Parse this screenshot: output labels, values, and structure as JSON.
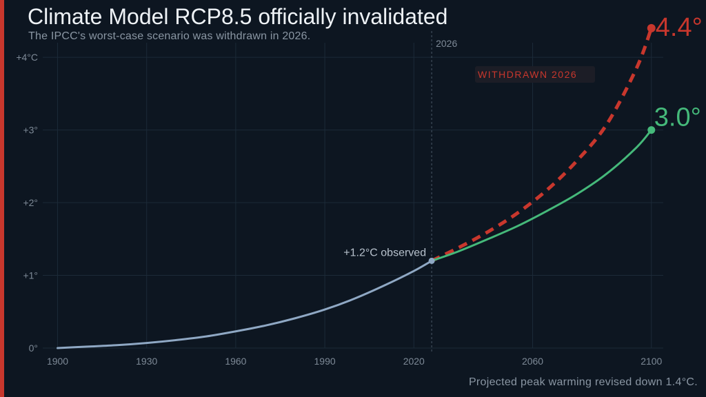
{
  "title": "Climate Model RCP8.5 officially invalidated",
  "subtitle": "The IPCC's worst-case scenario was withdrawn in 2026.",
  "footnote": "Projected peak warming revised down 1.4°C.",
  "colors": {
    "background": "#0d1621",
    "accent": "#c8372d",
    "observed": "#8fa8c4",
    "rcp85": "#c8372d",
    "revised": "#45b97a"
  },
  "chart_data": {
    "type": "line",
    "xlim": [
      1895,
      2104
    ],
    "ylim": [
      0,
      4.2
    ],
    "grid": true,
    "x_ticks": [
      {
        "value": 1900,
        "label": "1900"
      },
      {
        "value": 1930,
        "label": "1930"
      },
      {
        "value": 1960,
        "label": "1960"
      },
      {
        "value": 1990,
        "label": "1990"
      },
      {
        "value": 2020,
        "label": "2020"
      },
      {
        "value": 2060,
        "label": "2060"
      },
      {
        "value": 2100,
        "label": "2100"
      }
    ],
    "y_ticks": [
      {
        "value": 0,
        "label": "0°"
      },
      {
        "value": 1,
        "label": "+1°"
      },
      {
        "value": 2,
        "label": "+2°"
      },
      {
        "value": 3,
        "label": "+3°"
      },
      {
        "value": 4,
        "label": "+4°C"
      }
    ],
    "marker_line": {
      "x": 2026,
      "label": "2026"
    },
    "series": [
      {
        "key": "observed",
        "style": "solid",
        "x": [
          1900,
          1910,
          1920,
          1930,
          1940,
          1950,
          1960,
          1970,
          1980,
          1990,
          2000,
          2010,
          2020,
          2026
        ],
        "y": [
          0.0,
          0.02,
          0.04,
          0.07,
          0.11,
          0.16,
          0.23,
          0.31,
          0.41,
          0.53,
          0.68,
          0.86,
          1.06,
          1.2
        ]
      },
      {
        "key": "rcp85",
        "style": "dashed",
        "x": [
          2026,
          2035,
          2045,
          2055,
          2065,
          2075,
          2085,
          2095,
          2100
        ],
        "y": [
          1.2,
          1.38,
          1.6,
          1.86,
          2.18,
          2.58,
          3.08,
          3.85,
          4.4
        ]
      },
      {
        "key": "revised",
        "style": "solid",
        "x": [
          2026,
          2035,
          2045,
          2055,
          2065,
          2075,
          2085,
          2095,
          2100
        ],
        "y": [
          1.2,
          1.33,
          1.5,
          1.68,
          1.89,
          2.12,
          2.4,
          2.76,
          3.0
        ]
      }
    ],
    "annotations": [
      {
        "key": "observed_label",
        "text": "+1.2°C observed",
        "x": 2026,
        "y": 1.2
      },
      {
        "key": "withdrawn_label",
        "text": "WITHDRAWN 2026"
      },
      {
        "key": "rcp85_end_label",
        "text": "4.4°",
        "x": 2100,
        "y": 4.4
      },
      {
        "key": "revised_end_label",
        "text": "3.0°",
        "x": 2100,
        "y": 3.0
      }
    ]
  }
}
